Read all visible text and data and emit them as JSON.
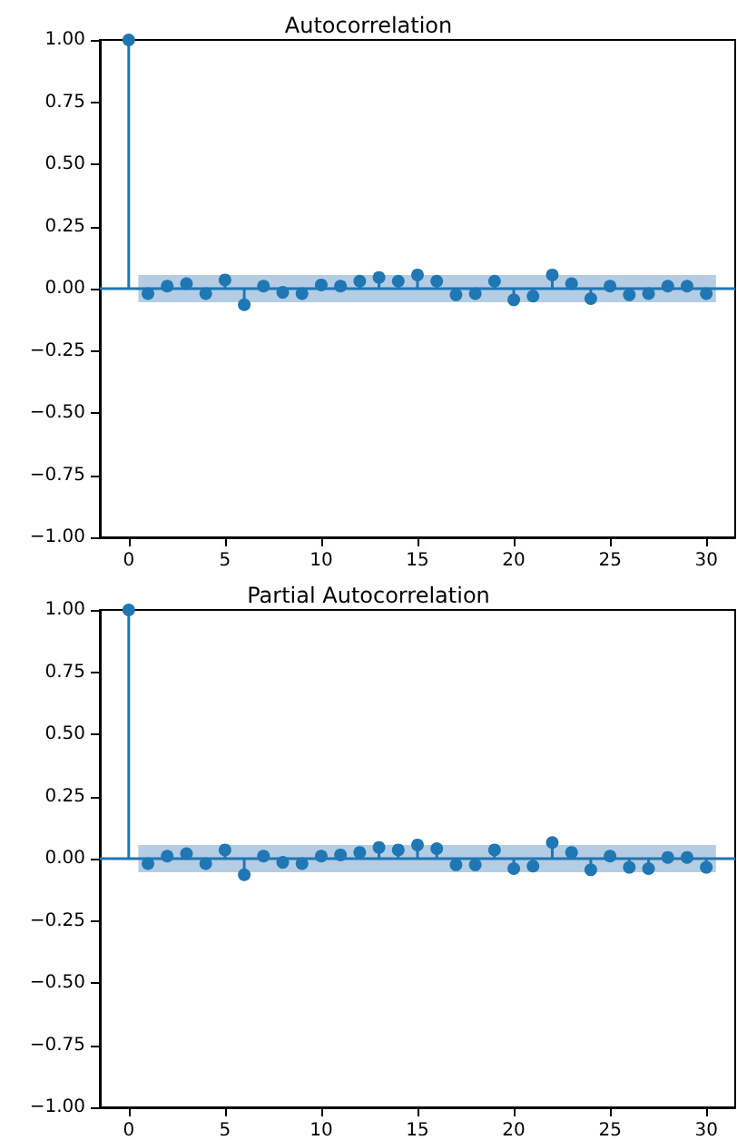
{
  "chart_data": [
    {
      "type": "lollipop",
      "title": "Autocorrelation",
      "x": [
        0,
        1,
        2,
        3,
        4,
        5,
        6,
        7,
        8,
        9,
        10,
        11,
        12,
        13,
        14,
        15,
        16,
        17,
        18,
        19,
        20,
        21,
        22,
        23,
        24,
        25,
        26,
        27,
        28,
        29,
        30
      ],
      "series": [
        {
          "color": "#1f77b4",
          "values": [
            1.0,
            -0.02,
            0.01,
            0.02,
            -0.02,
            0.035,
            -0.065,
            0.01,
            -0.015,
            -0.02,
            0.015,
            0.01,
            0.03,
            0.045,
            0.03,
            0.055,
            0.03,
            -0.025,
            -0.02,
            0.03,
            -0.045,
            -0.03,
            0.055,
            0.02,
            -0.04,
            0.01,
            -0.025,
            -0.02,
            0.01,
            0.01,
            -0.02
          ]
        }
      ],
      "bands": [
        {
          "axis": "y",
          "from": -0.055,
          "to": 0.055,
          "color": "#b4cde4"
        }
      ],
      "ref_lines": [
        {
          "axis": "y",
          "value": 0,
          "color": "#1f77b4"
        }
      ],
      "xlim": [
        -1.5,
        31.5
      ],
      "xticks": [
        0,
        5,
        10,
        15,
        20,
        25,
        30
      ],
      "ylim": [
        -1,
        1
      ],
      "yticks": [
        {
          "value": -1,
          "label": "−1.00"
        },
        {
          "value": -0.75,
          "label": "−0.75"
        },
        {
          "value": -0.5,
          "label": "−0.50"
        },
        {
          "value": -0.25,
          "label": "−0.25"
        },
        {
          "value": 0,
          "label": "0.00"
        },
        {
          "value": 0.25,
          "label": "0.25"
        },
        {
          "value": 0.5,
          "label": "0.50"
        },
        {
          "value": 0.75,
          "label": "0.75"
        },
        {
          "value": 1,
          "label": "1.00"
        }
      ],
      "grid": false,
      "marker": "circle"
    },
    {
      "type": "lollipop",
      "title": "Partial Autocorrelation",
      "x": [
        0,
        1,
        2,
        3,
        4,
        5,
        6,
        7,
        8,
        9,
        10,
        11,
        12,
        13,
        14,
        15,
        16,
        17,
        18,
        19,
        20,
        21,
        22,
        23,
        24,
        25,
        26,
        27,
        28,
        29,
        30
      ],
      "series": [
        {
          "color": "#1f77b4",
          "values": [
            1.0,
            -0.02,
            0.01,
            0.02,
            -0.02,
            0.035,
            -0.065,
            0.01,
            -0.015,
            -0.02,
            0.01,
            0.015,
            0.025,
            0.045,
            0.035,
            0.055,
            0.04,
            -0.025,
            -0.025,
            0.035,
            -0.04,
            -0.03,
            0.065,
            0.025,
            -0.045,
            0.01,
            -0.035,
            -0.04,
            0.005,
            0.005,
            -0.035
          ]
        }
      ],
      "bands": [
        {
          "axis": "y",
          "from": -0.055,
          "to": 0.055,
          "color": "#b4cde4"
        }
      ],
      "ref_lines": [
        {
          "axis": "y",
          "value": 0,
          "color": "#1f77b4"
        }
      ],
      "xlim": [
        -1.5,
        31.5
      ],
      "xticks": [
        0,
        5,
        10,
        15,
        20,
        25,
        30
      ],
      "ylim": [
        -1,
        1
      ],
      "yticks": [
        {
          "value": -1,
          "label": "−1.00"
        },
        {
          "value": -0.75,
          "label": "−0.75"
        },
        {
          "value": -0.5,
          "label": "−0.50"
        },
        {
          "value": -0.25,
          "label": "−0.25"
        },
        {
          "value": 0,
          "label": "0.00"
        },
        {
          "value": 0.25,
          "label": "0.25"
        },
        {
          "value": 0.5,
          "label": "0.50"
        },
        {
          "value": 0.75,
          "label": "0.75"
        },
        {
          "value": 1,
          "label": "1.00"
        }
      ],
      "grid": false,
      "marker": "circle"
    }
  ]
}
